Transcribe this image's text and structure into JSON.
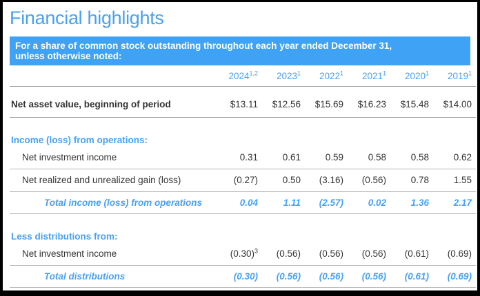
{
  "header": {
    "title": "Financial highlights",
    "banner_line1": "For a share of common stock outstanding throughout each year ended December 31,",
    "banner_line2": "unless otherwise noted:"
  },
  "colors": {
    "accent": "#47a1f3",
    "banner_bg": "#3fa2f5",
    "body_text": "#333333",
    "rule_gray": "#9e9e9e"
  },
  "table": {
    "columns": [
      {
        "label": "2024",
        "sup": "1,2"
      },
      {
        "label": "2023",
        "sup": "1"
      },
      {
        "label": "2022",
        "sup": "1"
      },
      {
        "label": "2021",
        "sup": "1"
      },
      {
        "label": "2020",
        "sup": "1"
      },
      {
        "label": "2019",
        "sup": "1"
      }
    ],
    "rows": [
      {
        "type": "nav",
        "label": "Net asset value, beginning of period",
        "values": [
          "$13.11",
          "$12.56",
          "$15.69",
          "$16.23",
          "$15.48",
          "$14.00"
        ]
      },
      {
        "type": "section",
        "label": "Income (loss) from operations:"
      },
      {
        "type": "item",
        "label": "Net investment income",
        "values": [
          "0.31",
          "0.61",
          "0.59",
          "0.58",
          "0.58",
          "0.62"
        ]
      },
      {
        "type": "item",
        "label": "Net realized and unrealized gain (loss)",
        "values": [
          "(0.27)",
          "0.50",
          "(3.16)",
          "(0.56)",
          "0.78",
          "1.55"
        ]
      },
      {
        "type": "total",
        "label": "Total income (loss) from operations",
        "values": [
          "0.04",
          "1.11",
          "(2.57)",
          "0.02",
          "1.36",
          "2.17"
        ]
      },
      {
        "type": "section",
        "label": "Less distributions from:"
      },
      {
        "type": "item",
        "label": "Net investment income",
        "values": [
          "(0.30)",
          "(0.56)",
          "(0.56)",
          "(0.56)",
          "(0.61)",
          "(0.69)"
        ],
        "sups": [
          "3",
          "",
          "",
          "",
          "",
          ""
        ]
      },
      {
        "type": "total",
        "label": "Total distributions",
        "values": [
          "(0.30)",
          "(0.56)",
          "(0.56)",
          "(0.56)",
          "(0.61)",
          "(0.69)"
        ]
      }
    ]
  }
}
